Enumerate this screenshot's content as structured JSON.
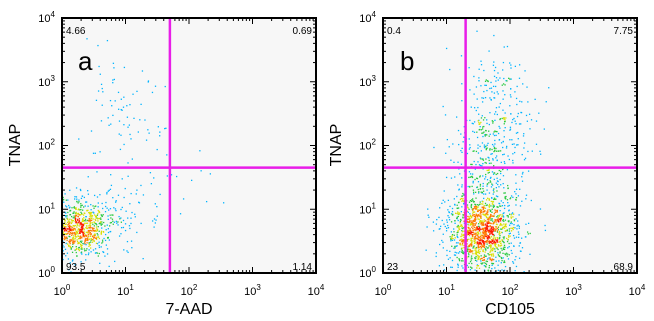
{
  "chart_data": [
    {
      "type": "scatter",
      "panel_label": "a",
      "title": "",
      "xlabel": "7-AAD",
      "ylabel": "TNAP",
      "xscale": "log",
      "yscale": "log",
      "xlim": [
        1,
        10000
      ],
      "ylim": [
        1,
        10000
      ],
      "x_ticks": [
        {
          "value": 1,
          "label": "10",
          "exp": "0"
        },
        {
          "value": 10,
          "label": "10",
          "exp": "1"
        },
        {
          "value": 100,
          "label": "10",
          "exp": "2"
        },
        {
          "value": 1000,
          "label": "10",
          "exp": "3"
        },
        {
          "value": 10000,
          "label": "10",
          "exp": "4"
        }
      ],
      "y_ticks": [
        {
          "value": 1,
          "label": "10",
          "exp": "0"
        },
        {
          "value": 10,
          "label": "10",
          "exp": "1"
        },
        {
          "value": 100,
          "label": "10",
          "exp": "2"
        },
        {
          "value": 1000,
          "label": "10",
          "exp": "3"
        },
        {
          "value": 10000,
          "label": "10",
          "exp": "4"
        }
      ],
      "gate": {
        "x": 50,
        "y": 45,
        "color": "#e81ee8"
      },
      "quadrant_percentages": {
        "upper_left": "4.66",
        "upper_right": "0.69",
        "lower_left": "93.5",
        "lower_right": "1.14"
      },
      "populations": [
        {
          "center": [
            1.8,
            5.0
          ],
          "spread": [
            0.22,
            0.22
          ],
          "count": 650
        },
        {
          "center": [
            3.5,
            6.0
          ],
          "spread": [
            0.35,
            0.25
          ],
          "count": 180
        },
        {
          "center": [
            8.0,
            250
          ],
          "spread": [
            0.35,
            0.45
          ],
          "count": 80
        },
        {
          "center": [
            30,
            15
          ],
          "spread": [
            0.5,
            0.5
          ],
          "count": 35
        }
      ],
      "density_colors": [
        "#1f2cff",
        "#00b4ff",
        "#27c93f",
        "#d8e000",
        "#ff7a00",
        "#ff1a00"
      ],
      "grid": false,
      "legend": "none"
    },
    {
      "type": "scatter",
      "panel_label": "b",
      "title": "",
      "xlabel": "CD105",
      "ylabel": "TNAP",
      "xscale": "log",
      "yscale": "log",
      "xlim": [
        1,
        10000
      ],
      "ylim": [
        1,
        10000
      ],
      "x_ticks": [
        {
          "value": 1,
          "label": "10",
          "exp": "0"
        },
        {
          "value": 10,
          "label": "10",
          "exp": "1"
        },
        {
          "value": 100,
          "label": "10",
          "exp": "2"
        },
        {
          "value": 1000,
          "label": "10",
          "exp": "3"
        },
        {
          "value": 10000,
          "label": "10",
          "exp": "4"
        }
      ],
      "y_ticks": [
        {
          "value": 1,
          "label": "10",
          "exp": "0"
        },
        {
          "value": 10,
          "label": "10",
          "exp": "1"
        },
        {
          "value": 100,
          "label": "10",
          "exp": "2"
        },
        {
          "value": 1000,
          "label": "10",
          "exp": "3"
        },
        {
          "value": 10000,
          "label": "10",
          "exp": "4"
        }
      ],
      "gate": {
        "x": 20,
        "y": 45,
        "color": "#e81ee8"
      },
      "quadrant_percentages": {
        "upper_left": "0.4",
        "upper_right": "7.75",
        "lower_left": "23",
        "lower_right": "68.9"
      },
      "populations": [
        {
          "center": [
            35,
            4.5
          ],
          "spread": [
            0.28,
            0.3
          ],
          "count": 1300
        },
        {
          "center": [
            50,
            60
          ],
          "spread": [
            0.3,
            0.55
          ],
          "count": 380
        },
        {
          "center": [
            60,
            600
          ],
          "spread": [
            0.3,
            0.4
          ],
          "count": 120
        }
      ],
      "density_colors": [
        "#1f2cff",
        "#00b4ff",
        "#27c93f",
        "#d8e000",
        "#ff7a00",
        "#ff1a00"
      ],
      "grid": false,
      "legend": "none"
    }
  ]
}
